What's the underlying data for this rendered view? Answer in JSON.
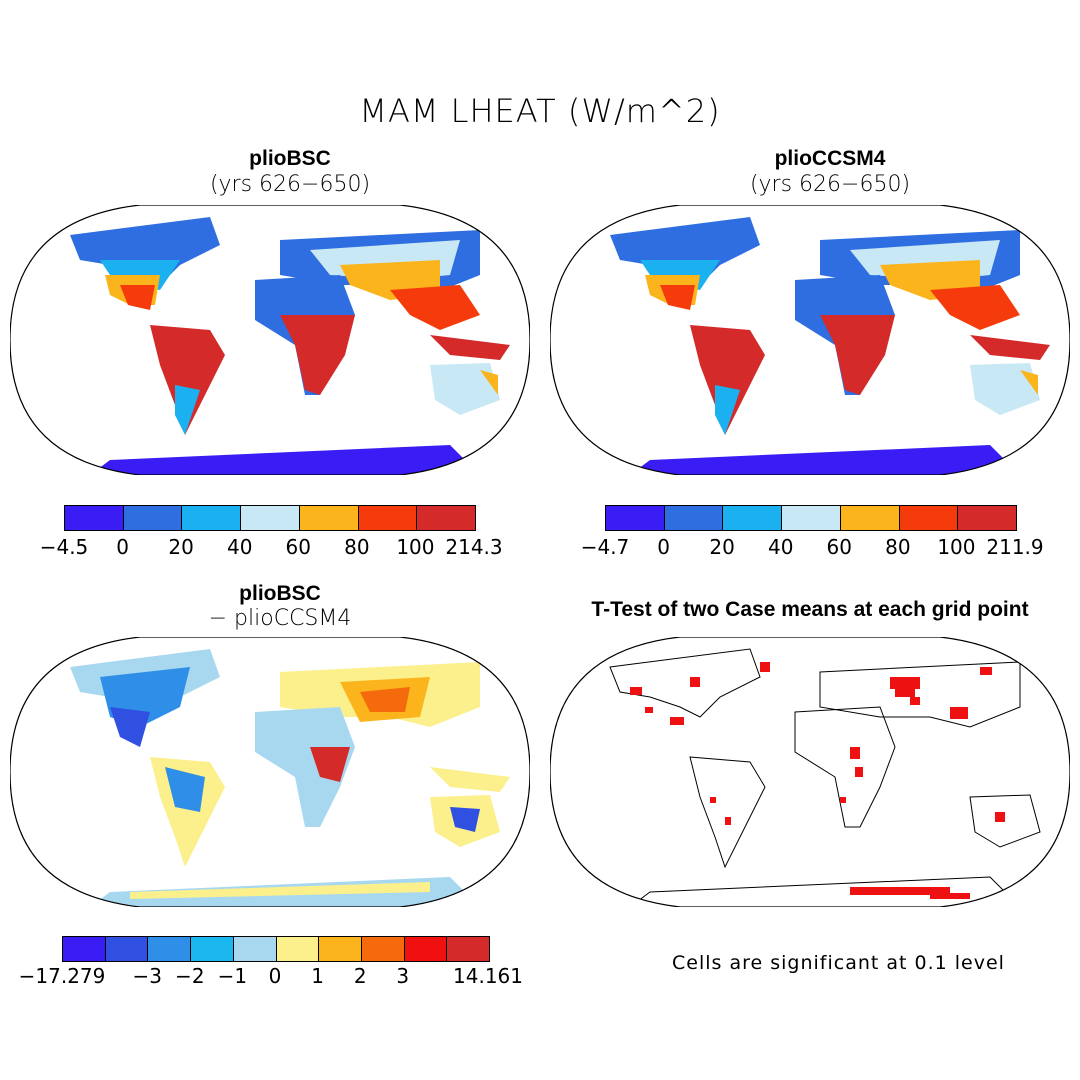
{
  "title": "MAM LHEAT (W/m^2)",
  "panels": {
    "tl": {
      "title": "plioBSC",
      "subtitle": "(yrs 626−650)"
    },
    "tr": {
      "title": "plioCCSM4",
      "subtitle": "(yrs 626−650)"
    },
    "bl": {
      "title": "plioBSC",
      "subtitle": "− plioCCSM4"
    },
    "br": {
      "title": "T-Test of two Case means at each grid point"
    }
  },
  "colorbars": {
    "tl": {
      "colors": [
        "#3a1cf5",
        "#2f6ee0",
        "#1bb0ef",
        "#c8e8f5",
        "#fbb41c",
        "#f53a0c",
        "#d42a2a"
      ],
      "labels": [
        "−4.5",
        "0",
        "20",
        "40",
        "60",
        "80",
        "100",
        "214.3"
      ]
    },
    "tr": {
      "colors": [
        "#3a1cf5",
        "#2f6ee0",
        "#1bb0ef",
        "#c8e8f5",
        "#fbb41c",
        "#f53a0c",
        "#d42a2a"
      ],
      "labels": [
        "−4.7",
        "0",
        "20",
        "40",
        "60",
        "80",
        "100",
        "211.9"
      ]
    },
    "bl": {
      "colors": [
        "#3a1cf5",
        "#2f50e0",
        "#2f8fe8",
        "#1bb8ef",
        "#a8d8f0",
        "#fbf08c",
        "#fbb41c",
        "#f56a0c",
        "#f01010",
        "#d42a2a"
      ],
      "labels": [
        "−17.279",
        "−3",
        "−2",
        "−1",
        "0",
        "1",
        "2",
        "3",
        "14.161"
      ]
    }
  },
  "note": "Cells are significant at 0.1 level"
}
